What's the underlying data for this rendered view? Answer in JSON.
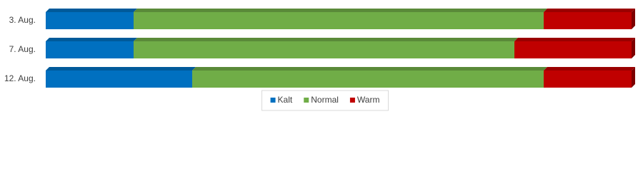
{
  "chart_data": {
    "type": "stacked-bar-100",
    "categories": [
      "3. Aug.",
      "7. Aug.",
      "12. Aug."
    ],
    "series": [
      {
        "name": "Kalt",
        "color": "#0070c0",
        "values": [
          15,
          15,
          25
        ]
      },
      {
        "name": "Normal",
        "color": "#70ad47",
        "values": [
          70,
          65,
          60
        ]
      },
      {
        "name": "Warm",
        "color": "#c00000",
        "values": [
          15,
          20,
          15
        ]
      }
    ],
    "legend": "bottom"
  }
}
